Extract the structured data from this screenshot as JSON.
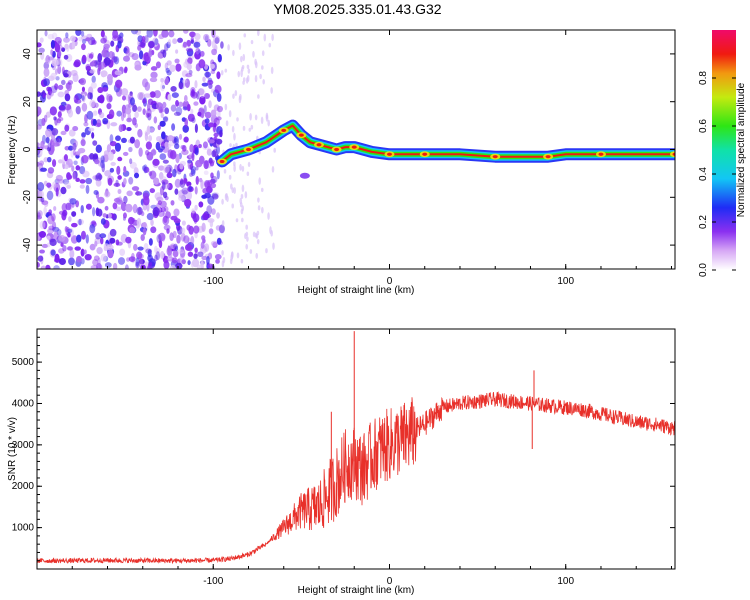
{
  "title": "YM08.2025.335.01.43.G32",
  "chart_data": [
    {
      "type": "heatmap",
      "title": "YM08.2025.335.01.43.G32",
      "xlabel": "Height of straight line (km)",
      "ylabel": "Frequency (Hz)",
      "xlim": [
        -200,
        162
      ],
      "ylim": [
        -50,
        50
      ],
      "xticks": [
        -100,
        0,
        100
      ],
      "yticks": [
        -40,
        -20,
        0,
        20,
        40
      ],
      "colorbar": {
        "label": "Normalized spectral amplitude",
        "range": [
          0,
          1
        ],
        "ticks": [
          0.0,
          0.2,
          0.4,
          0.6,
          0.8
        ]
      },
      "ridge": {
        "x": [
          -95,
          -90,
          -80,
          -70,
          -60,
          -55,
          -50,
          -45,
          -40,
          -35,
          -30,
          -25,
          -20,
          -10,
          0,
          10,
          20,
          40,
          60,
          80,
          90,
          100,
          120,
          140,
          162
        ],
        "freq": [
          -5,
          -2,
          0,
          3,
          8,
          10,
          6,
          3,
          2,
          1,
          0,
          1,
          1,
          -1,
          -2,
          -2,
          -2,
          -2,
          -3,
          -3,
          -3,
          -2,
          -2,
          -2,
          -2
        ]
      }
    },
    {
      "type": "line",
      "xlabel": "Height of straight line (km)",
      "ylabel": "SNR (10 * v/v)",
      "xlim": [
        -200,
        162
      ],
      "ylim": [
        0,
        5800
      ],
      "xticks": [
        -100,
        0,
        100
      ],
      "yticks": [
        1000,
        2000,
        3000,
        4000,
        5000
      ],
      "color": "#e8302a",
      "series": [
        {
          "name": "SNR",
          "x": [
            -200,
            -180,
            -160,
            -140,
            -120,
            -100,
            -90,
            -80,
            -70,
            -60,
            -50,
            -40,
            -35,
            -30,
            -25,
            -20,
            -15,
            -10,
            -5,
            0,
            10,
            20,
            30,
            40,
            50,
            60,
            70,
            80,
            90,
            100,
            110,
            120,
            130,
            140,
            150,
            162
          ],
          "values": [
            200,
            200,
            210,
            200,
            200,
            210,
            250,
            350,
            600,
            1000,
            1400,
            1500,
            1800,
            2100,
            2500,
            2600,
            2400,
            2700,
            2900,
            3000,
            3200,
            3500,
            3900,
            4000,
            4050,
            4100,
            4050,
            4000,
            3950,
            3900,
            3850,
            3750,
            3650,
            3550,
            3500,
            3400
          ]
        }
      ],
      "spikes": [
        {
          "x": -20,
          "value": 5750
        },
        {
          "x": -33,
          "value": 3800
        },
        {
          "x": 82,
          "value": 4800
        },
        {
          "x": 81,
          "value": 2900
        }
      ]
    }
  ]
}
